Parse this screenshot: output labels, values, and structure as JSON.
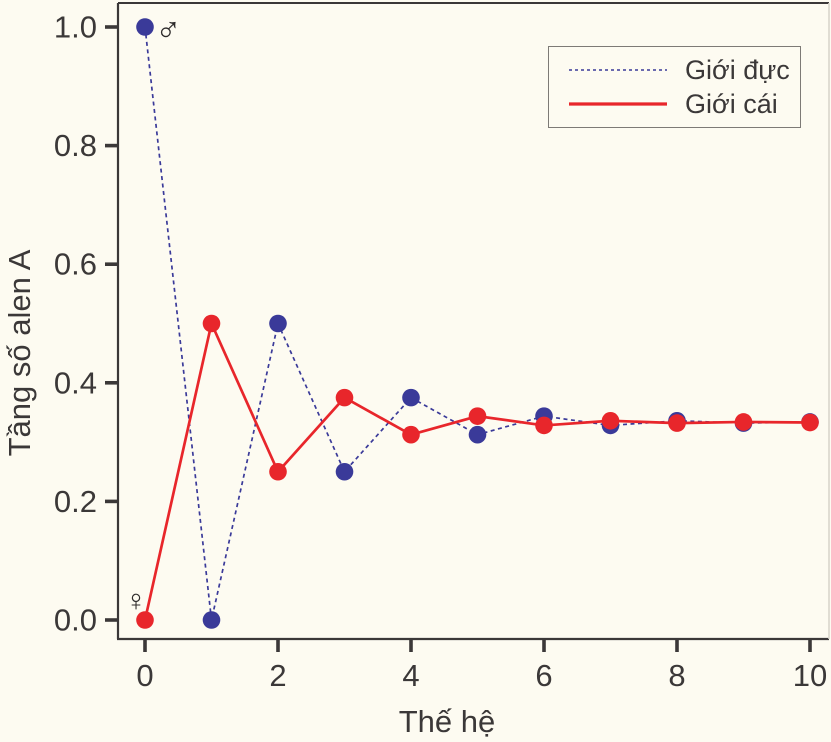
{
  "page": {
    "background": "#FDFBF1"
  },
  "chart_data": {
    "type": "line",
    "title": "",
    "xlabel": "Thế hệ",
    "ylabel": "Tầng số alen A",
    "xlim": [
      0,
      10
    ],
    "ylim": [
      0.0,
      1.0
    ],
    "grid": false,
    "legend_position": "top-right",
    "xticks": [
      0,
      2,
      4,
      6,
      8,
      10
    ],
    "xtick_labels": [
      "0",
      "2",
      "4",
      "6",
      "8",
      "10"
    ],
    "yticks": [
      0.0,
      0.2,
      0.4,
      0.6,
      0.8,
      1.0
    ],
    "ytick_labels": [
      "0.0",
      "0.2",
      "0.4",
      "0.6",
      "0.8",
      "1.0"
    ],
    "x": [
      0,
      1,
      2,
      3,
      4,
      5,
      6,
      7,
      8,
      9,
      10
    ],
    "series": [
      {
        "name": "Giới đực",
        "color": "#3A3A99",
        "style": "dashed",
        "marker": "circle",
        "values": [
          1.0,
          0.0,
          0.5,
          0.25,
          0.375,
          0.3125,
          0.34375,
          0.328125,
          0.3359375,
          0.33203125,
          0.333984375
        ]
      },
      {
        "name": "Giới cái",
        "color": "#E8262B",
        "style": "solid",
        "marker": "circle",
        "values": [
          0.0,
          0.5,
          0.25,
          0.375,
          0.3125,
          0.34375,
          0.328125,
          0.3359375,
          0.33203125,
          0.333984375,
          0.3330078125
        ]
      }
    ],
    "annotations": [
      {
        "name": "male-symbol",
        "text": "♂",
        "x": 0.35,
        "y": 0.995,
        "size": 35
      },
      {
        "name": "female-symbol",
        "text": "♀",
        "x": -0.135,
        "y": 0.032,
        "size": 30
      }
    ],
    "colors": {
      "axis": "#3B3838",
      "tick_text": "#3B3838",
      "plot_border_light": "#D9D6CC",
      "annotation": "#2E2B2B",
      "legend_border": "#7D7A76"
    }
  }
}
